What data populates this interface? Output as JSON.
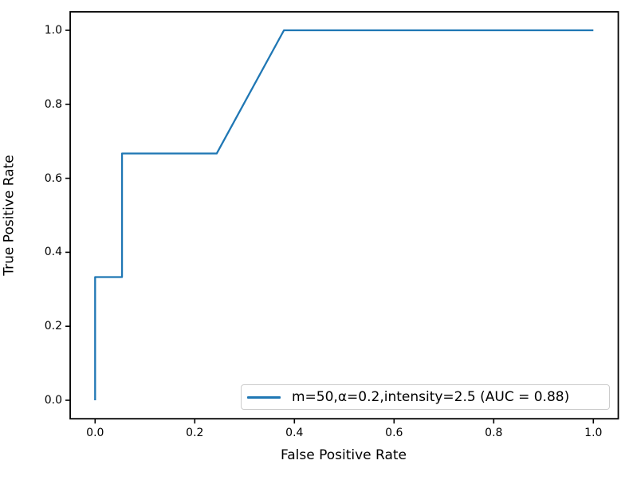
{
  "figure": {
    "background": "#ffffff",
    "spine_color": "#000000",
    "tick_color": "#000000"
  },
  "chart_data": {
    "type": "line",
    "title": "",
    "xlabel": "False Positive Rate",
    "ylabel": "True Positive Rate",
    "xlim": [
      -0.05,
      1.05
    ],
    "ylim": [
      -0.05,
      1.05
    ],
    "xticks": [
      0.0,
      0.2,
      0.4,
      0.6,
      0.8,
      1.0
    ],
    "yticks": [
      0.0,
      0.2,
      0.4,
      0.6,
      0.8,
      1.0
    ],
    "xtick_labels": [
      "0.0",
      "0.2",
      "0.4",
      "0.6",
      "0.8",
      "1.0"
    ],
    "ytick_labels": [
      "0.0",
      "0.2",
      "0.4",
      "0.6",
      "0.8",
      "1.0"
    ],
    "grid": false,
    "legend_position": "lower right",
    "series": [
      {
        "name": "m=50,α=0.2,intensity=2.5 (AUC = 0.88)",
        "color": "#1f77b4",
        "auc": 0.88,
        "x": [
          0.0,
          0.0,
          0.054,
          0.054,
          0.244,
          0.379,
          1.0
        ],
        "y": [
          0.0,
          0.333,
          0.333,
          0.667,
          0.667,
          1.0,
          1.0
        ]
      }
    ]
  }
}
